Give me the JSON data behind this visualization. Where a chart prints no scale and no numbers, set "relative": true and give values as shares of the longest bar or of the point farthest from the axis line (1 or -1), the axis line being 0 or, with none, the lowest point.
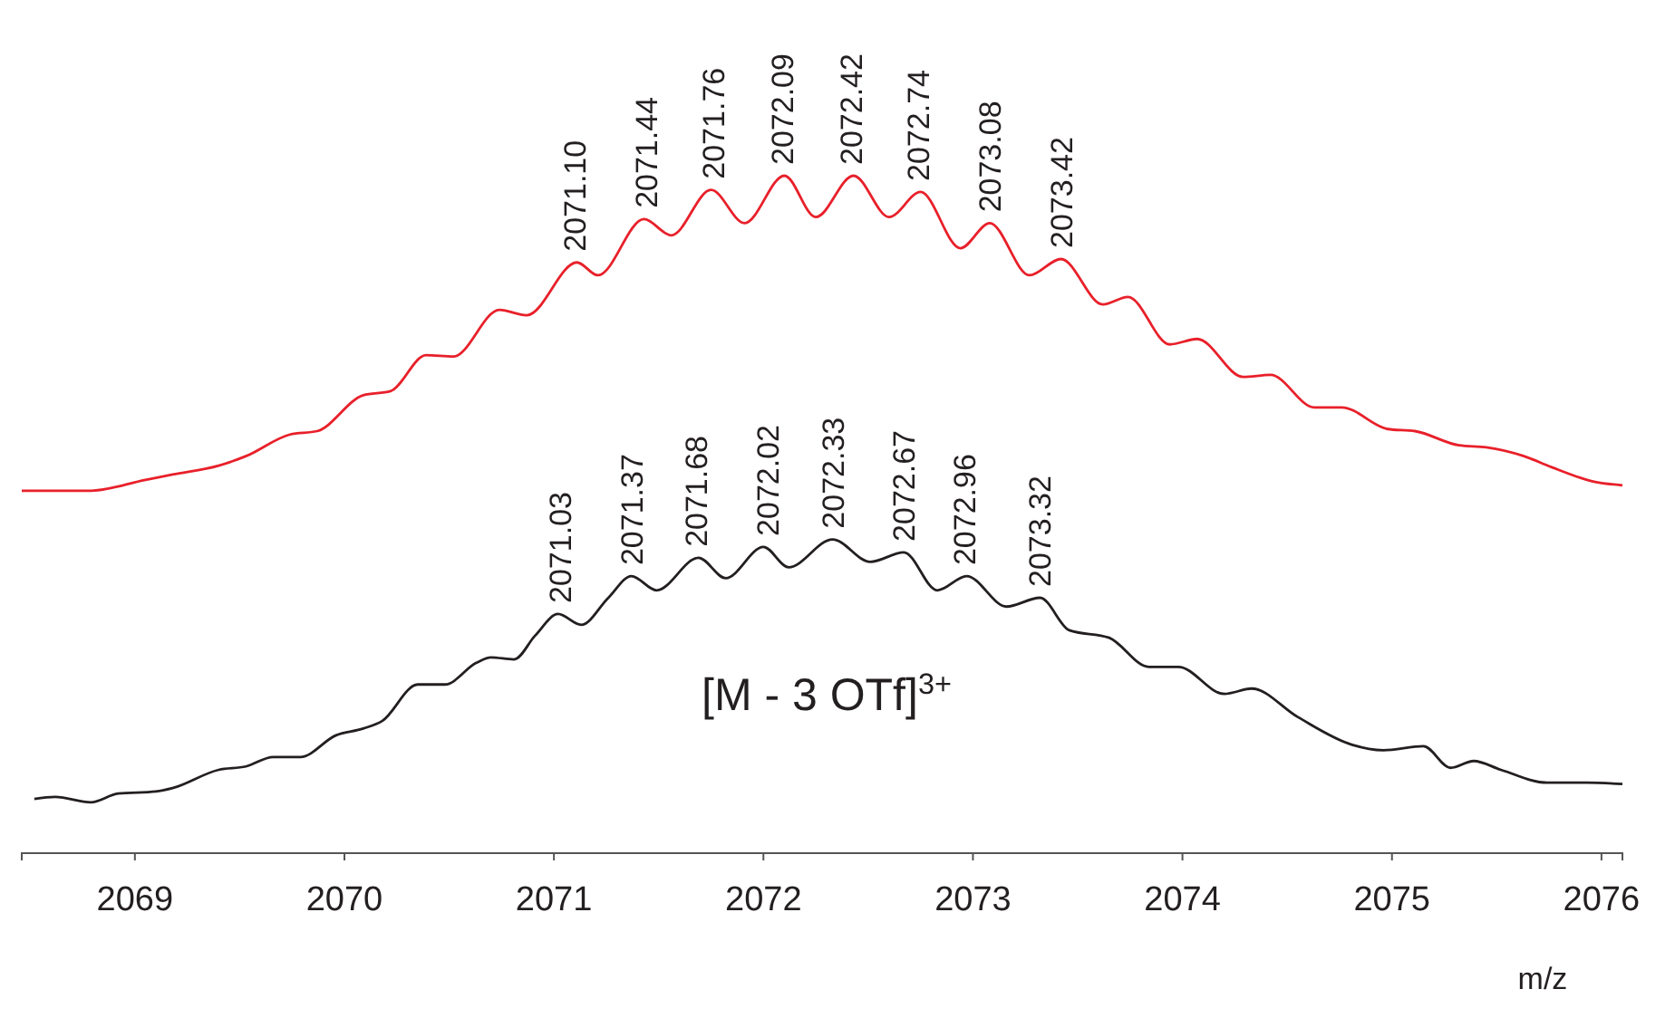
{
  "chart_data": {
    "type": "line",
    "relative": true,
    "xlabel": "m/z",
    "xlim": [
      2068.46,
      2076.1
    ],
    "xticks": [
      2069,
      2070,
      2071,
      2072,
      2073,
      2074,
      2075,
      2076
    ],
    "grid": false,
    "legend": false,
    "marker": "none",
    "line_style": "solid",
    "series": [
      {
        "color": "#e8202a",
        "x": [
          2068.46,
          2068.79,
          2069.05,
          2069.18,
          2069.4,
          2069.53,
          2069.74,
          2069.87,
          2070.09,
          2070.22,
          2070.39,
          2070.52,
          2070.74,
          2070.87,
          2071.11,
          2071.21,
          2071.43,
          2071.56,
          2071.75,
          2071.91,
          2072.1,
          2072.25,
          2072.43,
          2072.6,
          2072.75,
          2072.94,
          2073.08,
          2073.27,
          2073.42,
          2073.62,
          2073.74,
          2073.94,
          2074.07,
          2074.29,
          2074.42,
          2074.63,
          2074.76,
          2074.98,
          2075.11,
          2075.32,
          2075.45,
          2075.63,
          2075.76,
          2075.97,
          2076.1
        ],
        "values": [
          0.535,
          0.535,
          0.551,
          0.559,
          0.572,
          0.586,
          0.618,
          0.623,
          0.676,
          0.682,
          0.735,
          0.733,
          0.802,
          0.794,
          0.872,
          0.853,
          0.936,
          0.912,
          0.979,
          0.93,
          1,
          0.939,
          1,
          0.939,
          0.976,
          0.893,
          0.93,
          0.853,
          0.877,
          0.81,
          0.821,
          0.751,
          0.759,
          0.703,
          0.706,
          0.658,
          0.658,
          0.626,
          0.623,
          0.602,
          0.599,
          0.586,
          0.57,
          0.548,
          0.543
        ]
      },
      {
        "color": "#231f20",
        "x": [
          2068.52,
          2068.62,
          2068.79,
          2068.92,
          2069.1,
          2069.18,
          2069.4,
          2069.53,
          2069.66,
          2069.79,
          2069.96,
          2070.09,
          2070.18,
          2070.35,
          2070.48,
          2070.63,
          2070.7,
          2070.81,
          2070.91,
          2071.02,
          2071.13,
          2071.26,
          2071.37,
          2071.49,
          2071.69,
          2071.82,
          2072.0,
          2072.12,
          2072.33,
          2072.51,
          2072.67,
          2072.83,
          2072.97,
          2073.16,
          2073.32,
          2073.46,
          2073.65,
          2073.84,
          2073.98,
          2074.2,
          2074.33,
          2074.55,
          2074.81,
          2074.96,
          2075.15,
          2075.28,
          2075.39,
          2075.52,
          2075.74,
          2075.93,
          2076.1
        ],
        "values": [
          0.08,
          0.083,
          0.075,
          0.088,
          0.091,
          0.096,
          0.123,
          0.128,
          0.142,
          0.142,
          0.174,
          0.184,
          0.195,
          0.249,
          0.249,
          0.281,
          0.289,
          0.286,
          0.321,
          0.353,
          0.337,
          0.377,
          0.409,
          0.388,
          0.436,
          0.406,
          0.452,
          0.422,
          0.463,
          0.43,
          0.444,
          0.388,
          0.409,
          0.364,
          0.377,
          0.329,
          0.318,
          0.275,
          0.275,
          0.235,
          0.243,
          0.201,
          0.16,
          0.152,
          0.158,
          0.126,
          0.136,
          0.123,
          0.104,
          0.104,
          0.102
        ]
      }
    ],
    "annotations": [
      {
        "text": "2071.10",
        "x": 2071.1,
        "y": 0.872
      },
      {
        "text": "2071.44",
        "x": 2071.44,
        "y": 0.936
      },
      {
        "text": "2071.76",
        "x": 2071.76,
        "y": 0.979
      },
      {
        "text": "2072.09",
        "x": 2072.09,
        "y": 1
      },
      {
        "text": "2072.42",
        "x": 2072.42,
        "y": 1
      },
      {
        "text": "2072.74",
        "x": 2072.74,
        "y": 0.976
      },
      {
        "text": "2073.08",
        "x": 2073.08,
        "y": 0.93
      },
      {
        "text": "2073.42",
        "x": 2073.42,
        "y": 0.877
      },
      {
        "text": "2071.03",
        "x": 2071.03,
        "y": 0.353
      },
      {
        "text": "2071.37",
        "x": 2071.37,
        "y": 0.409
      },
      {
        "text": "2071.68",
        "x": 2071.68,
        "y": 0.436
      },
      {
        "text": "2072.02",
        "x": 2072.02,
        "y": 0.452
      },
      {
        "text": "2072.33",
        "x": 2072.33,
        "y": 0.463
      },
      {
        "text": "2072.67",
        "x": 2072.67,
        "y": 0.444
      },
      {
        "text": "2072.96",
        "x": 2072.96,
        "y": 0.409
      },
      {
        "text": "2073.32",
        "x": 2073.32,
        "y": 0.377
      },
      "[M - 3 OTf]$^{3+}$"
    ]
  }
}
